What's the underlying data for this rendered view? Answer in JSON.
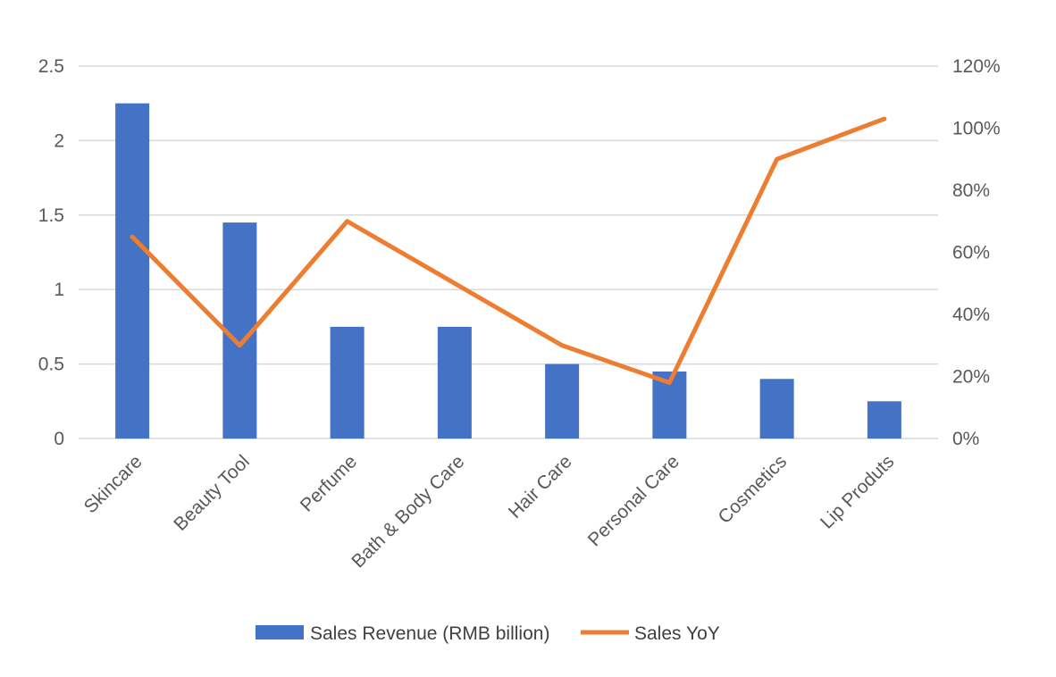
{
  "chart_data": {
    "type": "bar",
    "categories": [
      "Skincare",
      "Beauty Tool",
      "Perfume",
      "Bath & Body Care",
      "Hair Care",
      "Personal Care",
      "Cosmetics",
      "Lip Produts"
    ],
    "series": [
      {
        "name": "Sales Revenue (RMB billion)",
        "type": "bar",
        "axis": "left",
        "color": "#4472C4",
        "values": [
          2.25,
          1.45,
          0.75,
          0.75,
          0.5,
          0.45,
          0.4,
          0.25
        ]
      },
      {
        "name": "Sales YoY",
        "type": "line",
        "axis": "right",
        "color": "#ED7D31",
        "values": [
          0.65,
          0.3,
          0.7,
          0.5,
          0.3,
          0.18,
          0.9,
          1.03
        ]
      }
    ],
    "y_left": {
      "ylim": [
        0,
        2.5
      ],
      "ticks": [
        0,
        0.5,
        1,
        1.5,
        2,
        2.5
      ],
      "tick_labels": [
        "0",
        "0.5",
        "1",
        "1.5",
        "2",
        "2.5"
      ]
    },
    "y_right": {
      "ylim": [
        0,
        1.2
      ],
      "ticks": [
        0,
        0.2,
        0.4,
        0.6,
        0.8,
        1.0,
        1.2
      ],
      "tick_labels": [
        "0%",
        "20%",
        "40%",
        "60%",
        "80%",
        "100%",
        "120%"
      ]
    },
    "grid": true,
    "gridline_color": "#D9D9D9",
    "legend_position": "bottom",
    "title": "",
    "xlabel": "",
    "ylabel": ""
  }
}
